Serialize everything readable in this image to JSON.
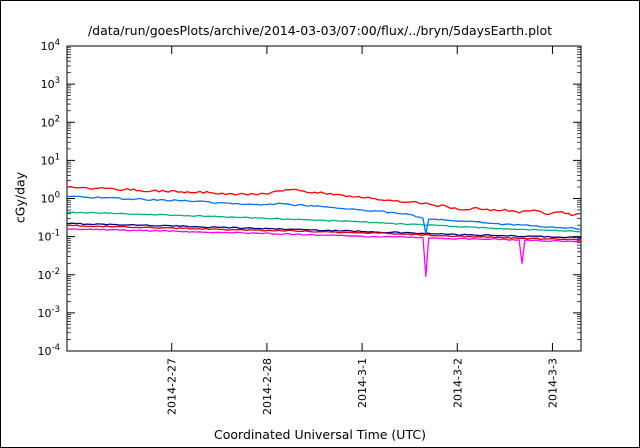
{
  "chart_data": {
    "type": "line",
    "title": "/data/run/goesPlots/archive/2014-03-03/07:00/flux/../bryn/5daysEarth.plot",
    "xlabel": "Coordinated Universal Time (UTC)",
    "ylabel": "cGy/day",
    "y_scale": "log",
    "ylim_exp": [
      -4,
      4
    ],
    "y_tick_exponents": [
      4,
      3,
      2,
      1,
      0,
      -1,
      -2,
      -3,
      -4
    ],
    "x_range_days": [
      0,
      5.4
    ],
    "x_ticks": [
      {
        "pos": 1.1,
        "label": "2014-2-27"
      },
      {
        "pos": 2.1,
        "label": "2014-2-28"
      },
      {
        "pos": 3.1,
        "label": "2014-3-1"
      },
      {
        "pos": 4.1,
        "label": "2014-3-2"
      },
      {
        "pos": 5.1,
        "label": "2014-3-3"
      }
    ],
    "grid": false,
    "legend": "none",
    "series": [
      {
        "name": "navy",
        "color": "#00008b",
        "width": 1.3,
        "noise": 0.015,
        "points": [
          [
            0,
            0.22
          ],
          [
            0.8,
            0.2
          ],
          [
            1.6,
            0.175
          ],
          [
            2.4,
            0.155
          ],
          [
            3.2,
            0.135
          ],
          [
            4.0,
            0.115
          ],
          [
            4.6,
            0.105
          ],
          [
            5.4,
            0.095
          ]
        ]
      },
      {
        "name": "dark-red",
        "color": "#dd0000",
        "width": 1.3,
        "noise": 0.015,
        "points": [
          [
            0,
            0.195
          ],
          [
            0.8,
            0.175
          ],
          [
            1.6,
            0.155
          ],
          [
            2.4,
            0.14
          ],
          [
            3.2,
            0.125
          ],
          [
            4.0,
            0.105
          ],
          [
            4.8,
            0.09
          ],
          [
            5.4,
            0.082
          ]
        ]
      },
      {
        "name": "magenta",
        "color": "#ff00ff",
        "width": 1.3,
        "noise": 0.015,
        "points": [
          [
            0,
            0.16
          ],
          [
            0.8,
            0.145
          ],
          [
            1.6,
            0.13
          ],
          [
            2.4,
            0.115
          ],
          [
            3.2,
            0.1
          ],
          [
            3.74,
            0.095
          ],
          [
            3.77,
            0.009
          ],
          [
            3.8,
            0.092
          ],
          [
            4.4,
            0.085
          ],
          [
            4.75,
            0.082
          ],
          [
            4.78,
            0.02
          ],
          [
            4.81,
            0.08
          ],
          [
            5.1,
            0.077
          ],
          [
            5.4,
            0.073
          ]
        ]
      },
      {
        "name": "green",
        "color": "#00b386",
        "width": 1.3,
        "noise": 0.015,
        "points": [
          [
            0,
            0.44
          ],
          [
            0.6,
            0.4
          ],
          [
            1.2,
            0.36
          ],
          [
            1.8,
            0.32
          ],
          [
            2.4,
            0.28
          ],
          [
            3.0,
            0.25
          ],
          [
            3.6,
            0.21
          ],
          [
            4.0,
            0.19
          ],
          [
            4.4,
            0.17
          ],
          [
            4.8,
            0.155
          ],
          [
            5.1,
            0.145
          ],
          [
            5.4,
            0.135
          ]
        ]
      },
      {
        "name": "blue",
        "color": "#0072ff",
        "width": 1.3,
        "noise": 0.022,
        "points": [
          [
            0,
            1.15
          ],
          [
            0.4,
            1.05
          ],
          [
            0.8,
            0.95
          ],
          [
            1.2,
            0.87
          ],
          [
            1.6,
            0.78
          ],
          [
            2.0,
            0.7
          ],
          [
            2.2,
            0.73
          ],
          [
            2.5,
            0.65
          ],
          [
            2.8,
            0.58
          ],
          [
            3.1,
            0.5
          ],
          [
            3.4,
            0.43
          ],
          [
            3.6,
            0.38
          ],
          [
            3.74,
            0.3
          ],
          [
            3.77,
            0.12
          ],
          [
            3.8,
            0.29
          ],
          [
            4.0,
            0.27
          ],
          [
            4.2,
            0.25
          ],
          [
            4.4,
            0.23
          ],
          [
            4.6,
            0.21
          ],
          [
            4.8,
            0.2
          ],
          [
            5.0,
            0.18
          ],
          [
            5.2,
            0.17
          ],
          [
            5.4,
            0.16
          ]
        ]
      },
      {
        "name": "red",
        "color": "#ff0000",
        "width": 1.3,
        "noise": 0.03,
        "points": [
          [
            0,
            1.95
          ],
          [
            0.3,
            1.85
          ],
          [
            0.6,
            1.7
          ],
          [
            0.9,
            1.6
          ],
          [
            1.2,
            1.5
          ],
          [
            1.5,
            1.42
          ],
          [
            1.8,
            1.3
          ],
          [
            2.0,
            1.25
          ],
          [
            2.15,
            1.45
          ],
          [
            2.3,
            1.7
          ],
          [
            2.45,
            1.6
          ],
          [
            2.6,
            1.45
          ],
          [
            2.8,
            1.25
          ],
          [
            3.0,
            1.1
          ],
          [
            3.2,
            1.0
          ],
          [
            3.4,
            0.9
          ],
          [
            3.6,
            0.8
          ],
          [
            3.8,
            0.72
          ],
          [
            4.0,
            0.6
          ],
          [
            4.15,
            0.5
          ],
          [
            4.3,
            0.58
          ],
          [
            4.45,
            0.48
          ],
          [
            4.6,
            0.52
          ],
          [
            4.75,
            0.42
          ],
          [
            4.9,
            0.5
          ],
          [
            5.05,
            0.38
          ],
          [
            5.2,
            0.45
          ],
          [
            5.3,
            0.36
          ],
          [
            5.4,
            0.4
          ]
        ]
      }
    ]
  }
}
